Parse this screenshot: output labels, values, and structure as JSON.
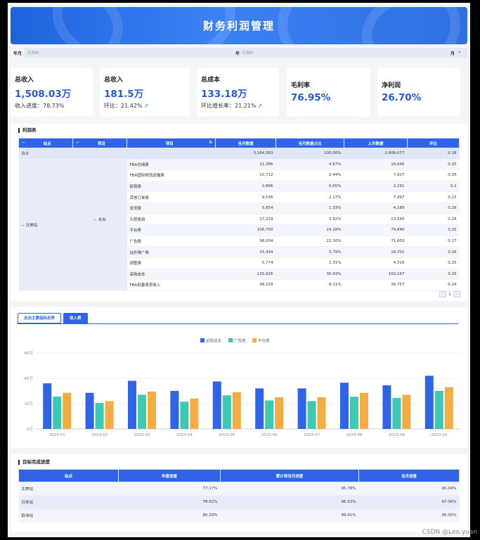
{
  "header": {
    "title": "财务利润管理"
  },
  "filters": {
    "year_label": "年月",
    "year_placeholder": "无限制",
    "mid_label": "年",
    "mid_placeholder": "无限制",
    "month_label": "月"
  },
  "kpis": [
    {
      "title": "总收入",
      "value": "1,508.03万",
      "sub": "收入进度：78.73%"
    },
    {
      "title": "总收入",
      "value": "181.5万",
      "sub": "环比：21.42%"
    },
    {
      "title": "总成本",
      "value": "133.18万",
      "sub": "环比增长率：21.21%"
    },
    {
      "title": "毛利率",
      "value": "76.95%"
    },
    {
      "title": "净利润",
      "value": "26.70%"
    }
  ],
  "profit_table": {
    "title": "利润表",
    "headers": [
      "站点",
      "项目",
      "项目",
      "当月数据",
      "当月数据占比",
      "上月数据",
      "环比"
    ],
    "total": {
      "label": "合计",
      "month": "3,164,363",
      "share": "100.00%",
      "prev": "2,606,077",
      "ratio": "0.18"
    },
    "site": "北美站",
    "group": "支出",
    "rows": [
      {
        "item": "FBA仓储费",
        "month": "21,386",
        "share": "4.87%",
        "prev": "16,046",
        "ratio": "0.25"
      },
      {
        "item": "FBA国际物流运输费",
        "month": "10,712",
        "share": "2.44%",
        "prev": "7,927",
        "ratio": "0.26"
      },
      {
        "item": "促销费",
        "month": "2,866",
        "share": "0.65%",
        "prev": "2,291",
        "ratio": "0.2"
      },
      {
        "item": "其他订单费",
        "month": "9,536",
        "share": "2.17%",
        "prev": "7,297",
        "ratio": "0.23"
      },
      {
        "item": "发货费",
        "month": "5,854",
        "share": "1.33%",
        "prev": "4,189",
        "ratio": "0.28"
      },
      {
        "item": "头程费用",
        "month": "17,219",
        "share": "3.92%",
        "prev": "13,040",
        "ratio": "0.24"
      },
      {
        "item": "平台费",
        "month": "106,700",
        "share": "24.28%",
        "prev": "79,840",
        "ratio": "0.25"
      },
      {
        "item": "广告费",
        "month": "98,004",
        "share": "22.30%",
        "prev": "71,603",
        "ratio": "0.27"
      },
      {
        "item": "站外推广费",
        "month": "25,434",
        "share": "5.79%",
        "prev": "18,701",
        "ratio": "0.26"
      },
      {
        "item": "调整费",
        "month": "5,774",
        "share": "1.31%",
        "prev": "4,316",
        "ratio": "0.25"
      },
      {
        "item": "采购成本",
        "month": "135,926",
        "share": "30.93%",
        "prev": "100,167",
        "ratio": "0.26"
      },
      {
        "item": "FBA批量清货收入",
        "month": "48,103",
        "share": "8.11%",
        "prev": "36,757",
        "ratio": "0.24"
      }
    ],
    "page": "1"
  },
  "chart_tabs": [
    "支出主要指标走势",
    "收入表"
  ],
  "chart_data": {
    "type": "bar",
    "categories": [
      "2023-01",
      "2023-02",
      "2023-03",
      "2023-04",
      "2023-05",
      "2023-06",
      "2023-07",
      "2023-08",
      "2023-09",
      "2023-10"
    ],
    "series": [
      {
        "name": "采购成本",
        "color": "#2f64e8",
        "values": [
          36,
          28.5,
          38,
          30,
          37.5,
          32,
          32,
          36.5,
          34.5,
          42
        ]
      },
      {
        "name": "广告费",
        "color": "#3ec9b5",
        "values": [
          25.5,
          20.5,
          27,
          21.5,
          26.5,
          22.5,
          22,
          25.5,
          24.5,
          30
        ]
      },
      {
        "name": "平台费",
        "color": "#f5ad42",
        "values": [
          28.5,
          22,
          29.5,
          24,
          29,
          25,
          25,
          28.5,
          27,
          33
        ]
      }
    ],
    "yticks": [
      "0万",
      "20万",
      "40万",
      "60万"
    ],
    "ylim": [
      0,
      60
    ]
  },
  "goal_table": {
    "title": "目标完成进度",
    "headers": [
      "站点",
      "年度进度",
      "累计到当月进度",
      "当月进度"
    ],
    "rows": [
      {
        "site": "北美站",
        "year": "77.17%",
        "cum": "95.78%",
        "month": "95.04%"
      },
      {
        "site": "日本站",
        "year": "78.62%",
        "cum": "96.53%",
        "month": "97.06%"
      },
      {
        "site": "欧洲站",
        "year": "80.20%",
        "cum": "99.41%",
        "month": "95.05%"
      }
    ]
  },
  "watermark": "CSDN @Leo.yuan"
}
